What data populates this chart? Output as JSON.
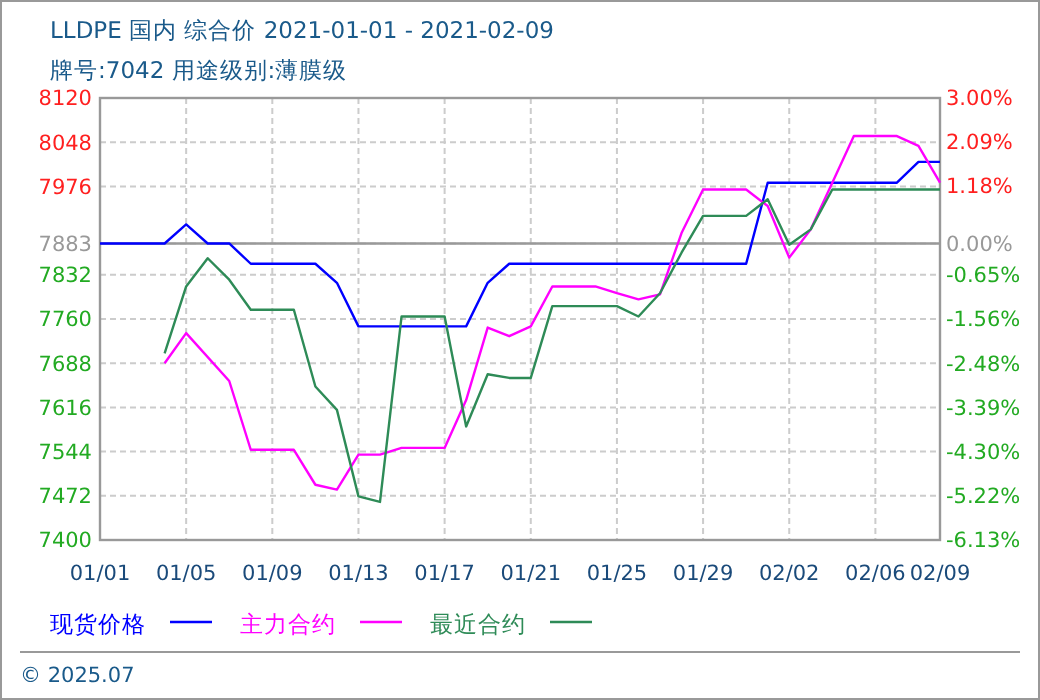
{
  "chart_data": {
    "type": "line",
    "title": "LLDPE 国内 综合价 2021-01-01 - 2021-02-09",
    "subtitle": "牌号:7042 用途级别:薄膜级",
    "xlim": [
      "2021-01-01",
      "2021-02-09"
    ],
    "xticks": [
      {
        "value": "2021-01-01",
        "label": "01/01"
      },
      {
        "value": "2021-01-05",
        "label": "01/05"
      },
      {
        "value": "2021-01-09",
        "label": "01/09"
      },
      {
        "value": "2021-01-13",
        "label": "01/13"
      },
      {
        "value": "2021-01-17",
        "label": "01/17"
      },
      {
        "value": "2021-01-21",
        "label": "01/21"
      },
      {
        "value": "2021-01-25",
        "label": "01/25"
      },
      {
        "value": "2021-01-29",
        "label": "01/29"
      },
      {
        "value": "2021-02-02",
        "label": "02/02"
      },
      {
        "value": "2021-02-06",
        "label": "02/06"
      },
      {
        "value": "2021-02-09",
        "label": "02/09"
      }
    ],
    "ylim": [
      7400,
      8120
    ],
    "yticks": [
      7400,
      7472,
      7544,
      7616,
      7688,
      7760,
      7832,
      7883,
      7976,
      8048,
      8120
    ],
    "y2lim": [
      -6.13,
      3.0
    ],
    "y2ticks": [
      {
        "value": -6.13,
        "label": "-6.13%"
      },
      {
        "value": -5.22,
        "label": "-5.22%"
      },
      {
        "value": -4.3,
        "label": "-4.30%"
      },
      {
        "value": -3.39,
        "label": "-3.39%"
      },
      {
        "value": -2.48,
        "label": "-2.48%"
      },
      {
        "value": -1.56,
        "label": "-1.56%"
      },
      {
        "value": -0.65,
        "label": "-0.65%"
      },
      {
        "value": 0,
        "label": "0.00%"
      },
      {
        "value": 1.18,
        "label": "1.18%"
      },
      {
        "value": 2.09,
        "label": "2.09%"
      },
      {
        "value": 3.0,
        "label": "3.00%"
      }
    ],
    "ref_lines": [
      {
        "axis": "y",
        "value": 7883,
        "color": "#999999"
      }
    ],
    "grid": true,
    "legend": "bottom",
    "marker": "none",
    "line_style": "solid",
    "annotations": [
      "© 2025.07"
    ],
    "series": [
      {
        "name": "现货价格",
        "color": "#0000ff",
        "x": [
          "2021-01-01",
          "2021-01-04",
          "2021-01-05",
          "2021-01-06",
          "2021-01-07",
          "2021-01-08",
          "2021-01-11",
          "2021-01-12",
          "2021-01-13",
          "2021-01-18",
          "2021-01-19",
          "2021-01-20",
          "2021-01-31",
          "2021-02-01",
          "2021-02-07",
          "2021-02-08",
          "2021-02-09"
        ],
        "values": [
          7883,
          7883,
          7914,
          7883,
          7883,
          7850,
          7850,
          7819,
          7748,
          7748,
          7819,
          7850,
          7850,
          7982,
          7982,
          8016,
          8016
        ]
      },
      {
        "name": "主力合约",
        "color": "#ff00ff",
        "x": [
          "2021-01-04",
          "2021-01-05",
          "2021-01-07",
          "2021-01-08",
          "2021-01-10",
          "2021-01-11",
          "2021-01-12",
          "2021-01-13",
          "2021-01-14",
          "2021-01-15",
          "2021-01-17",
          "2021-01-18",
          "2021-01-19",
          "2021-01-20",
          "2021-01-21",
          "2021-01-22",
          "2021-01-24",
          "2021-01-25",
          "2021-01-26",
          "2021-01-27",
          "2021-01-28",
          "2021-01-29",
          "2021-01-31",
          "2021-02-01",
          "2021-02-02",
          "2021-02-03",
          "2021-02-04",
          "2021-02-05",
          "2021-02-07",
          "2021-02-08",
          "2021-02-09"
        ],
        "values": [
          7688,
          7737,
          7659,
          7547,
          7547,
          7490,
          7482,
          7539,
          7539,
          7550,
          7550,
          7628,
          7746,
          7732,
          7748,
          7813,
          7813,
          7802,
          7792,
          7800,
          7900,
          7971,
          7971,
          7944,
          7860,
          7906,
          7982,
          8058,
          8058,
          8042,
          7982
        ]
      },
      {
        "name": "最近合约",
        "color": "#2e8b57",
        "x": [
          "2021-01-04",
          "2021-01-05",
          "2021-01-06",
          "2021-01-07",
          "2021-01-08",
          "2021-01-10",
          "2021-01-11",
          "2021-01-12",
          "2021-01-13",
          "2021-01-14",
          "2021-01-15",
          "2021-01-17",
          "2021-01-18",
          "2021-01-19",
          "2021-01-20",
          "2021-01-21",
          "2021-01-22",
          "2021-01-25",
          "2021-01-26",
          "2021-01-27",
          "2021-01-28",
          "2021-01-29",
          "2021-01-31",
          "2021-02-01",
          "2021-02-02",
          "2021-02-03",
          "2021-02-04",
          "2021-02-09"
        ],
        "values": [
          7704,
          7813,
          7859,
          7824,
          7775,
          7775,
          7650,
          7612,
          7471,
          7462,
          7764,
          7764,
          7585,
          7670,
          7664,
          7664,
          7781,
          7781,
          7764,
          7802,
          7868,
          7928,
          7928,
          7955,
          7881,
          7906,
          7971,
          7971
        ]
      }
    ]
  }
}
